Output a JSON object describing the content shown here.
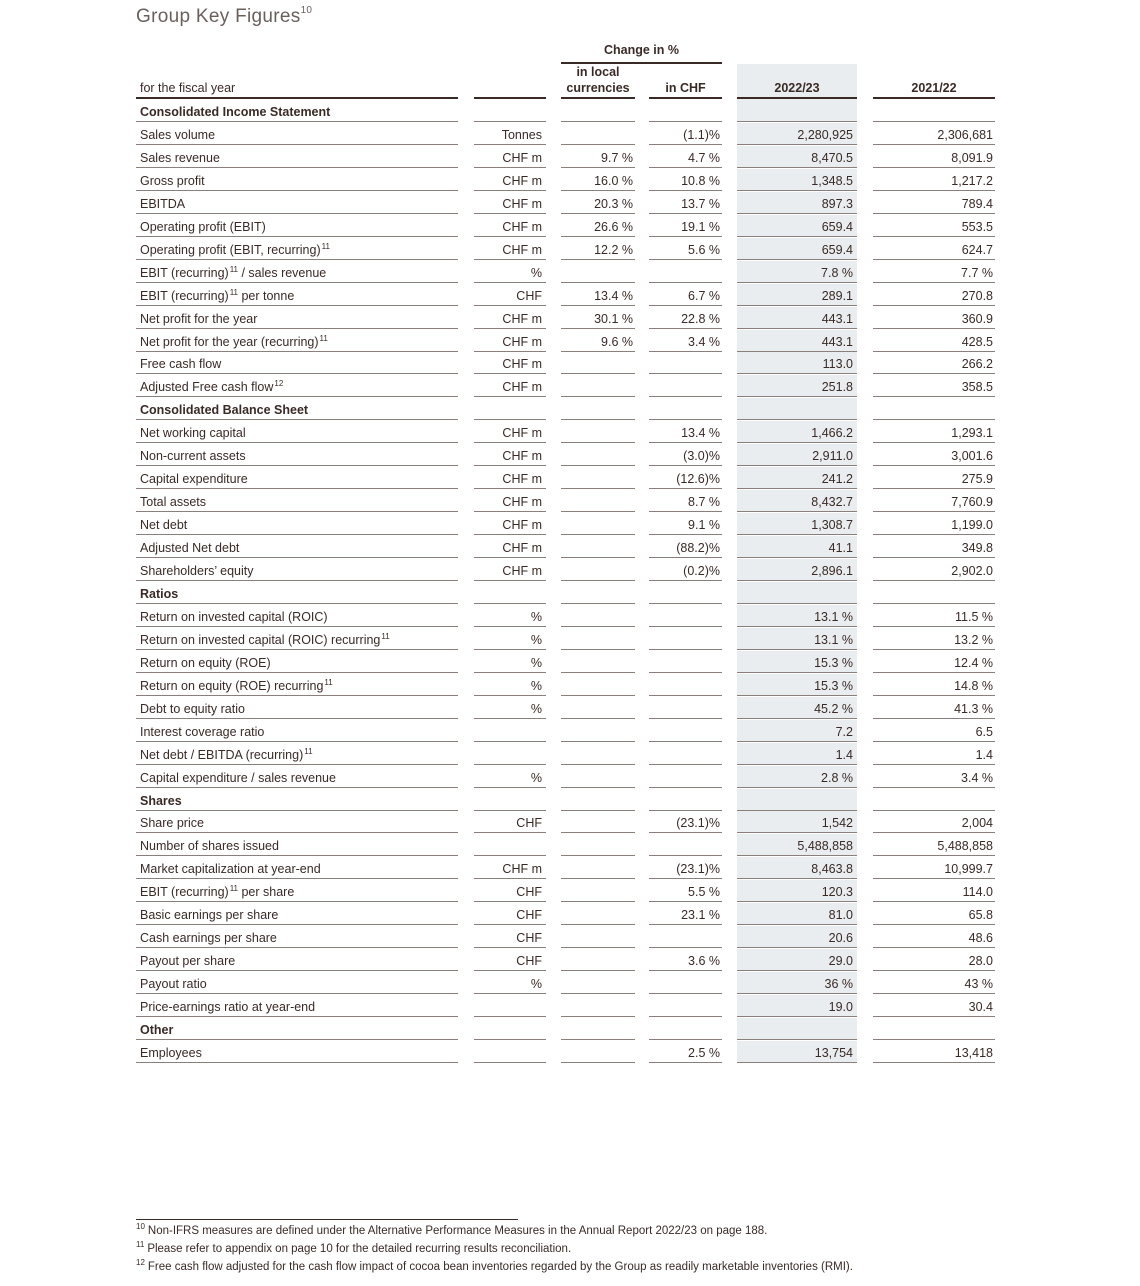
{
  "title": "Group Key Figures",
  "title_sup": "10",
  "headers": {
    "label": "for the fiscal year",
    "change_group": "Change in %",
    "local_line1": "in local",
    "local_line2": "currencies",
    "chf": "in CHF",
    "y1": "2022/23",
    "y2": "2021/22"
  },
  "rows": [
    {
      "label": "Consolidated Income Statement",
      "section": true
    },
    {
      "label": "Sales volume",
      "unit": "Tonnes",
      "loc": "",
      "chf": "(1.1)%",
      "y1": "2,280,925",
      "y2": "2,306,681"
    },
    {
      "label": "Sales revenue",
      "unit": "CHF m",
      "loc": "9.7 %",
      "chf": "4.7 %",
      "y1": "8,470.5",
      "y2": "8,091.9"
    },
    {
      "label": "Gross profit",
      "unit": "CHF m",
      "loc": "16.0 %",
      "chf": "10.8 %",
      "y1": "1,348.5",
      "y2": "1,217.2"
    },
    {
      "label": "EBITDA",
      "unit": "CHF m",
      "loc": "20.3 %",
      "chf": "13.7 %",
      "y1": "897.3",
      "y2": "789.4"
    },
    {
      "label": "Operating profit (EBIT)",
      "unit": "CHF m",
      "loc": "26.6 %",
      "chf": "19.1 %",
      "y1": "659.4",
      "y2": "553.5"
    },
    {
      "label": "Operating profit (EBIT, recurring)",
      "sup": "11",
      "unit": "CHF m",
      "loc": "12.2 %",
      "chf": "5.6 %",
      "y1": "659.4",
      "y2": "624.7"
    },
    {
      "label": "EBIT (recurring)",
      "sup": "11",
      "label_after": " / sales revenue",
      "unit": "%",
      "loc": "",
      "chf": "",
      "y1": "7.8 %",
      "y2": "7.7 %"
    },
    {
      "label": "EBIT (recurring)",
      "sup": "11",
      "label_after": " per tonne",
      "unit": "CHF",
      "loc": "13.4 %",
      "chf": "6.7 %",
      "y1": "289.1",
      "y2": "270.8"
    },
    {
      "label": "Net profit for the year",
      "unit": "CHF m",
      "loc": "30.1 %",
      "chf": "22.8 %",
      "y1": "443.1",
      "y2": "360.9"
    },
    {
      "label": "Net profit for the year (recurring)",
      "sup": "11",
      "unit": "CHF m",
      "loc": "9.6 %",
      "chf": "3.4 %",
      "y1": "443.1",
      "y2": "428.5"
    },
    {
      "label": "Free cash flow",
      "unit": "CHF m",
      "loc": "",
      "chf": "",
      "y1": "113.0",
      "y2": "266.2"
    },
    {
      "label": "Adjusted Free cash flow",
      "sup": "12",
      "unit": "CHF m",
      "loc": "",
      "chf": "",
      "y1": "251.8",
      "y2": "358.5"
    },
    {
      "label": "Consolidated Balance Sheet",
      "section": true
    },
    {
      "label": "Net working capital",
      "unit": "CHF m",
      "loc": "",
      "chf": "13.4 %",
      "y1": "1,466.2",
      "y2": "1,293.1"
    },
    {
      "label": "Non-current assets",
      "unit": "CHF m",
      "loc": "",
      "chf": "(3.0)%",
      "y1": "2,911.0",
      "y2": "3,001.6"
    },
    {
      "label": "Capital expenditure",
      "unit": "CHF m",
      "loc": "",
      "chf": "(12.6)%",
      "y1": "241.2",
      "y2": "275.9"
    },
    {
      "label": "Total assets",
      "unit": "CHF m",
      "loc": "",
      "chf": "8.7 %",
      "y1": "8,432.7",
      "y2": "7,760.9"
    },
    {
      "label": "Net debt",
      "unit": "CHF m",
      "loc": "",
      "chf": "9.1 %",
      "y1": "1,308.7",
      "y2": "1,199.0"
    },
    {
      "label": "Adjusted Net debt",
      "unit": "CHF m",
      "loc": "",
      "chf": "(88.2)%",
      "y1": "41.1",
      "y2": "349.8"
    },
    {
      "label": "Shareholders’ equity",
      "unit": "CHF m",
      "loc": "",
      "chf": "(0.2)%",
      "y1": "2,896.1",
      "y2": "2,902.0"
    },
    {
      "label": "Ratios",
      "section": true
    },
    {
      "label": "Return on invested capital (ROIC)",
      "unit": "%",
      "loc": "",
      "chf": "",
      "y1": "13.1 %",
      "y2": "11.5 %"
    },
    {
      "label": "Return on invested capital (ROIC) recurring",
      "sup": "11",
      "unit": "%",
      "loc": "",
      "chf": "",
      "y1": "13.1 %",
      "y2": "13.2 %"
    },
    {
      "label": "Return on equity (ROE)",
      "unit": "%",
      "loc": "",
      "chf": "",
      "y1": "15.3 %",
      "y2": "12.4 %"
    },
    {
      "label": "Return on equity (ROE) recurring",
      "sup": "11",
      "unit": "%",
      "loc": "",
      "chf": "",
      "y1": "15.3 %",
      "y2": "14.8 %"
    },
    {
      "label": "Debt to equity ratio",
      "unit": "%",
      "loc": "",
      "chf": "",
      "y1": "45.2 %",
      "y2": "41.3 %"
    },
    {
      "label": "Interest coverage ratio",
      "unit": "",
      "loc": "",
      "chf": "",
      "y1": "7.2",
      "y2": "6.5"
    },
    {
      "label": "Net debt / EBITDA (recurring)",
      "sup": "11",
      "unit": "",
      "loc": "",
      "chf": "",
      "y1": "1.4",
      "y2": "1.4"
    },
    {
      "label": "Capital expenditure / sales revenue",
      "unit": "%",
      "loc": "",
      "chf": "",
      "y1": "2.8 %",
      "y2": "3.4 %"
    },
    {
      "label": "Shares",
      "section": true
    },
    {
      "label": "Share price",
      "unit": "CHF",
      "loc": "",
      "chf": "(23.1)%",
      "y1": "1,542",
      "y2": "2,004"
    },
    {
      "label": "Number of shares issued",
      "unit": "",
      "loc": "",
      "chf": "",
      "y1": "5,488,858",
      "y2": "5,488,858"
    },
    {
      "label": "Market capitalization at year-end",
      "unit": "CHF m",
      "loc": "",
      "chf": "(23.1)%",
      "y1": "8,463.8",
      "y2": "10,999.7"
    },
    {
      "label": "EBIT (recurring)",
      "sup": "11",
      "label_after": " per share",
      "unit": "CHF",
      "loc": "",
      "chf": "5.5 %",
      "y1": "120.3",
      "y2": "114.0"
    },
    {
      "label": "Basic earnings per share",
      "unit": "CHF",
      "loc": "",
      "chf": "23.1 %",
      "y1": "81.0",
      "y2": "65.8"
    },
    {
      "label": "Cash earnings per share",
      "unit": "CHF",
      "loc": "",
      "chf": "",
      "y1": "20.6",
      "y2": "48.6"
    },
    {
      "label": "Payout per share",
      "unit": "CHF",
      "loc": "",
      "chf": "3.6 %",
      "y1": "29.0",
      "y2": "28.0"
    },
    {
      "label": "Payout ratio",
      "unit": "%",
      "loc": "",
      "chf": "",
      "y1": "36 %",
      "y2": "43 %"
    },
    {
      "label": "Price-earnings ratio at year-end",
      "unit": "",
      "loc": "",
      "chf": "",
      "y1": "19.0",
      "y2": "30.4"
    },
    {
      "label": "Other",
      "section": true
    },
    {
      "label": "Employees",
      "unit": "",
      "loc": "",
      "chf": "2.5 %",
      "y1": "13,754",
      "y2": "13,418"
    }
  ],
  "footnotes": [
    {
      "num": "10",
      "text": "Non-IFRS measures are defined under the Alternative Performance Measures in the Annual Report 2022/23 on page 188."
    },
    {
      "num": "11",
      "text": "Please refer to appendix on page 10 for the detailed recurring results reconciliation."
    },
    {
      "num": "12",
      "text": "Free cash flow adjusted for the cash flow impact of cocoa bean inventories regarded by the Group as readily marketable inventories (RMI)."
    }
  ]
}
